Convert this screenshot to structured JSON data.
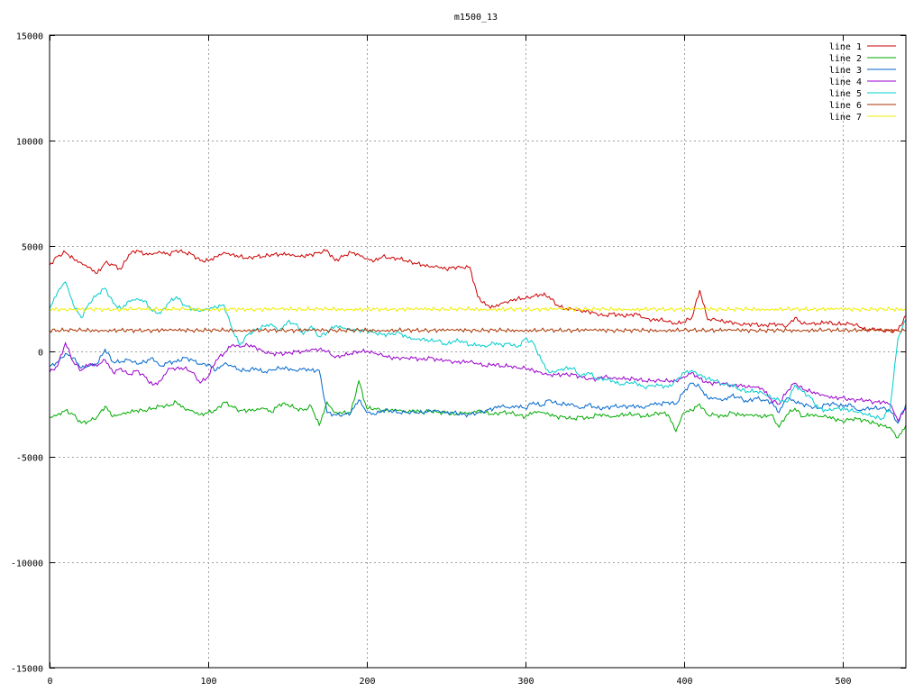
{
  "chart_data": {
    "type": "line",
    "title": "m1500_13",
    "xlabel": "",
    "ylabel": "",
    "xlim": [
      0,
      540
    ],
    "ylim": [
      -15000,
      15000
    ],
    "xticks": [
      0,
      100,
      200,
      300,
      400,
      500
    ],
    "xtick_labels": [
      "0",
      "100",
      "200",
      "300",
      "400",
      "500"
    ],
    "yticks": [
      -15000,
      -10000,
      -5000,
      0,
      5000,
      10000,
      15000
    ],
    "ytick_labels": [
      "-15000",
      "-10000",
      "-5000",
      "0",
      "5000",
      "10000",
      "15000"
    ],
    "grid": true,
    "legend_position": "top-right",
    "x": [
      0,
      5,
      10,
      15,
      20,
      25,
      30,
      35,
      40,
      45,
      50,
      55,
      60,
      65,
      70,
      75,
      80,
      85,
      90,
      95,
      100,
      105,
      110,
      115,
      120,
      125,
      130,
      135,
      140,
      145,
      150,
      155,
      160,
      165,
      170,
      175,
      180,
      185,
      190,
      195,
      200,
      205,
      210,
      215,
      220,
      225,
      230,
      235,
      240,
      245,
      250,
      255,
      260,
      265,
      270,
      275,
      280,
      285,
      290,
      295,
      300,
      305,
      310,
      315,
      320,
      325,
      330,
      335,
      340,
      345,
      350,
      355,
      360,
      365,
      370,
      375,
      380,
      385,
      390,
      395,
      400,
      405,
      410,
      415,
      420,
      425,
      430,
      435,
      440,
      445,
      450,
      455,
      460,
      465,
      470,
      475,
      480,
      485,
      490,
      495,
      500,
      505,
      510,
      515,
      520,
      525,
      530,
      535,
      540
    ],
    "series": [
      {
        "name": "line 1",
        "color": "#cc0000",
        "values": [
          4100,
          4500,
          4700,
          4400,
          4200,
          4000,
          3700,
          4200,
          4100,
          3900,
          4600,
          4800,
          4600,
          4600,
          4700,
          4600,
          4800,
          4700,
          4600,
          4300,
          4300,
          4500,
          4700,
          4600,
          4500,
          4400,
          4500,
          4500,
          4600,
          4600,
          4600,
          4500,
          4500,
          4600,
          4700,
          4800,
          4300,
          4500,
          4700,
          4600,
          4400,
          4300,
          4500,
          4400,
          4400,
          4300,
          4200,
          4100,
          4000,
          4000,
          3900,
          4000,
          4000,
          4000,
          2600,
          2200,
          2100,
          2300,
          2400,
          2500,
          2500,
          2600,
          2700,
          2600,
          2200,
          2000,
          2000,
          1900,
          1900,
          1800,
          1700,
          1800,
          1700,
          1700,
          1800,
          1600,
          1500,
          1500,
          1400,
          1300,
          1400,
          1600,
          2900,
          1500,
          1500,
          1400,
          1400,
          1300,
          1300,
          1300,
          1200,
          1300,
          1300,
          1200,
          1600,
          1300,
          1300,
          1300,
          1400,
          1300,
          1300,
          1300,
          1200,
          1000,
          1100,
          1000,
          1000,
          1000,
          1700
        ]
      },
      {
        "name": "line 2",
        "color": "#00aa00",
        "values": [
          -3100,
          -3000,
          -2800,
          -3000,
          -3400,
          -3300,
          -3100,
          -2600,
          -3100,
          -3000,
          -2900,
          -2800,
          -2800,
          -2700,
          -2600,
          -2600,
          -2400,
          -2700,
          -2800,
          -3000,
          -2900,
          -2800,
          -2400,
          -2600,
          -2800,
          -2800,
          -2800,
          -2700,
          -2900,
          -2500,
          -2500,
          -2700,
          -2800,
          -2600,
          -3500,
          -2400,
          -2900,
          -2900,
          -2900,
          -1400,
          -2700,
          -2700,
          -2800,
          -2800,
          -2800,
          -2900,
          -2800,
          -2900,
          -2800,
          -2900,
          -2900,
          -3000,
          -2900,
          -2900,
          -2800,
          -2900,
          -3000,
          -2900,
          -2900,
          -3000,
          -3100,
          -2900,
          -2900,
          -3000,
          -3100,
          -3100,
          -3200,
          -3100,
          -3200,
          -3000,
          -3000,
          -3100,
          -3000,
          -3000,
          -3000,
          -3100,
          -3000,
          -2900,
          -3000,
          -3800,
          -2900,
          -2800,
          -2500,
          -3000,
          -3000,
          -3100,
          -2900,
          -3000,
          -3000,
          -3000,
          -3100,
          -3000,
          -3600,
          -3000,
          -2700,
          -3100,
          -3000,
          -3100,
          -3100,
          -3200,
          -3300,
          -3200,
          -3200,
          -3300,
          -3400,
          -3500,
          -3600,
          -4100,
          -3500
        ]
      },
      {
        "name": "line 3",
        "color": "#0066cc",
        "values": [
          -700,
          -500,
          -100,
          -300,
          -800,
          -700,
          -600,
          100,
          -500,
          -500,
          -400,
          -600,
          -500,
          -300,
          -700,
          -500,
          -500,
          -300,
          -400,
          -600,
          -600,
          -900,
          -600,
          -700,
          -900,
          -900,
          -800,
          -1000,
          -900,
          -800,
          -800,
          -900,
          -800,
          -900,
          -900,
          -2900,
          -3000,
          -3000,
          -2900,
          -2300,
          -2900,
          -3000,
          -2800,
          -2800,
          -2900,
          -2900,
          -2900,
          -2900,
          -2800,
          -2800,
          -2900,
          -2900,
          -3000,
          -3000,
          -2900,
          -2800,
          -2700,
          -2600,
          -2700,
          -2600,
          -2700,
          -2400,
          -2600,
          -2300,
          -2500,
          -2500,
          -2500,
          -2700,
          -2500,
          -2700,
          -2700,
          -2600,
          -2600,
          -2600,
          -2600,
          -2700,
          -2500,
          -2500,
          -2400,
          -2500,
          -1900,
          -1500,
          -1700,
          -2200,
          -2200,
          -2300,
          -2100,
          -2200,
          -2400,
          -2200,
          -2300,
          -2400,
          -2900,
          -2200,
          -2400,
          -2500,
          -2600,
          -2700,
          -2500,
          -2500,
          -2600,
          -2500,
          -2800,
          -2700,
          -2700,
          -2700,
          -2800,
          -3400,
          -2500
        ]
      },
      {
        "name": "line 4",
        "color": "#9900cc",
        "values": [
          -1000,
          -700,
          400,
          -500,
          -900,
          -600,
          -700,
          -400,
          -1000,
          -800,
          -1100,
          -900,
          -1200,
          -1600,
          -1400,
          -800,
          -800,
          -800,
          -1000,
          -1500,
          -1200,
          -400,
          -100,
          300,
          200,
          300,
          200,
          0,
          -100,
          -100,
          -100,
          0,
          0,
          100,
          100,
          0,
          -300,
          -200,
          -100,
          0,
          0,
          -100,
          -200,
          -300,
          -300,
          -300,
          -300,
          -400,
          -300,
          -400,
          -400,
          -500,
          -500,
          -500,
          -600,
          -700,
          -600,
          -700,
          -700,
          -800,
          -800,
          -900,
          -1000,
          -1100,
          -1100,
          -1100,
          -1100,
          -1200,
          -1300,
          -1300,
          -1200,
          -1300,
          -1300,
          -1300,
          -1300,
          -1400,
          -1400,
          -1400,
          -1400,
          -1400,
          -1200,
          -1000,
          -1300,
          -1500,
          -1500,
          -1500,
          -1600,
          -1600,
          -1700,
          -1700,
          -1800,
          -2300,
          -2500,
          -1900,
          -1500,
          -1800,
          -1900,
          -2000,
          -2100,
          -2200,
          -2200,
          -2300,
          -2300,
          -2300,
          -2400,
          -2400,
          -2500,
          -3300,
          -2700
        ]
      },
      {
        "name": "line 5",
        "color": "#00cccc",
        "values": [
          2000,
          2800,
          3300,
          2200,
          1600,
          2300,
          2700,
          3000,
          2300,
          2000,
          2400,
          2500,
          2400,
          1900,
          1800,
          2300,
          2600,
          2200,
          2000,
          1900,
          2000,
          2100,
          2200,
          1100,
          300,
          800,
          1000,
          1200,
          1300,
          1000,
          1400,
          1300,
          800,
          1200,
          700,
          900,
          1200,
          1100,
          1000,
          1000,
          1000,
          900,
          800,
          800,
          900,
          700,
          600,
          600,
          500,
          500,
          300,
          500,
          500,
          300,
          300,
          200,
          400,
          300,
          400,
          200,
          600,
          400,
          -400,
          -1000,
          -900,
          -800,
          -800,
          -1200,
          -1000,
          -1300,
          -1300,
          -1400,
          -1600,
          -1500,
          -1500,
          -1700,
          -1600,
          -1600,
          -1700,
          -1400,
          -1000,
          -900,
          -1100,
          -1300,
          -1400,
          -1600,
          -1600,
          -1800,
          -1900,
          -1900,
          -2000,
          -2200,
          -2300,
          -2400,
          -1600,
          -1900,
          -2200,
          -2700,
          -2800,
          -2700,
          -2700,
          -2800,
          -2900,
          -3000,
          -3100,
          -3200,
          -2700,
          600,
          1500
        ]
      },
      {
        "name": "line 6",
        "color": "#aa3300",
        "values": [
          1000,
          1000,
          1000,
          1000,
          1000,
          1000,
          1000,
          1000,
          1000,
          1000,
          1000,
          1000,
          1000,
          1000,
          1000,
          1000,
          1000,
          1000,
          1000,
          1000,
          1000,
          1000,
          1000,
          1000,
          1000,
          1000,
          1000,
          1000,
          1000,
          1000,
          1000,
          1000,
          1000,
          1000,
          1000,
          1000,
          1000,
          1000,
          1000,
          1000,
          1000,
          1000,
          1000,
          1000,
          1000,
          1000,
          1000,
          1000,
          1000,
          1000,
          1000,
          1000,
          1000,
          1000,
          1000,
          1000,
          1000,
          1000,
          1000,
          1000,
          1000,
          1000,
          1000,
          1000,
          1000,
          1000,
          1000,
          1000,
          1000,
          1000,
          1000,
          1000,
          1000,
          1000,
          1000,
          1000,
          1000,
          1000,
          1000,
          1000,
          1000,
          1000,
          1000,
          1000,
          1000,
          1000,
          1000,
          1000,
          1000,
          1000,
          1000,
          1000,
          1000,
          1000,
          1000,
          1000,
          1000,
          1000,
          1000,
          1000,
          1000,
          1000,
          1000,
          1000,
          1000,
          1000,
          1000,
          1000,
          1000
        ]
      },
      {
        "name": "line 7",
        "color": "#eeee00",
        "values": [
          2000,
          2000,
          2000,
          2000,
          2000,
          2000,
          2000,
          2000,
          2000,
          2000,
          2000,
          2000,
          2000,
          2000,
          2000,
          2000,
          2000,
          2000,
          2000,
          2000,
          2000,
          2000,
          2000,
          2000,
          2000,
          2000,
          2000,
          2000,
          2000,
          2000,
          2000,
          2000,
          2000,
          2000,
          2000,
          2000,
          2000,
          2000,
          2000,
          2000,
          2000,
          2000,
          2000,
          2000,
          2000,
          2000,
          2000,
          2000,
          2000,
          2000,
          2000,
          2000,
          2000,
          2000,
          2000,
          2000,
          2000,
          2000,
          2000,
          2000,
          2000,
          2000,
          2000,
          2000,
          2000,
          2000,
          2000,
          2000,
          2000,
          2000,
          2000,
          2000,
          2000,
          2000,
          2000,
          2000,
          2000,
          2000,
          2000,
          2000,
          2000,
          2000,
          2000,
          2000,
          2000,
          2000,
          2000,
          2000,
          2000,
          2000,
          2000,
          2000,
          2000,
          2000,
          2000,
          2000,
          2000,
          2000,
          2000,
          2000,
          2000,
          2000,
          2000,
          2000,
          2000,
          2000,
          2000,
          2000,
          2000
        ]
      }
    ]
  }
}
